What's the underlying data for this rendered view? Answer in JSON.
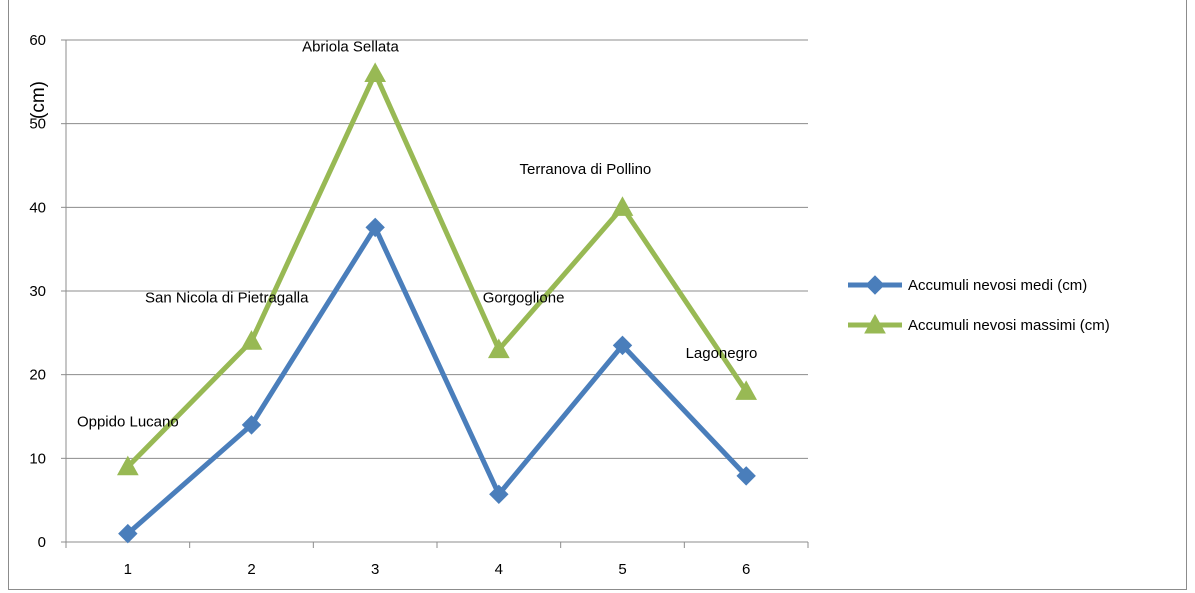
{
  "chart_data": {
    "type": "line",
    "title": "",
    "xlabel": "",
    "ylabel": "(cm)",
    "x": [
      1,
      2,
      3,
      4,
      5,
      6
    ],
    "x_tick_labels": [
      "1",
      "2",
      "3",
      "4",
      "5",
      "6"
    ],
    "ylim": [
      0,
      60
    ],
    "y_ticks": [
      0,
      10,
      20,
      30,
      40,
      50,
      60
    ],
    "y_tick_labels": [
      "0",
      "10",
      "20",
      "30",
      "40",
      "50",
      "60"
    ],
    "grid": "horizontal",
    "legend_position": "right",
    "series": [
      {
        "name": "Accumuli nevosi medi (cm)",
        "values": [
          1,
          14,
          37.6,
          5.7,
          23.5,
          7.9
        ],
        "color": "#4a7ebb",
        "marker": "diamond"
      },
      {
        "name": "Accumuli nevosi massimi (cm)",
        "values": [
          9,
          24,
          56,
          23,
          40,
          18
        ],
        "color": "#98b954",
        "marker": "triangle"
      }
    ],
    "annotations": [
      {
        "text": "Oppido Lucano",
        "x": 1,
        "y": 13.8
      },
      {
        "text": "San Nicola di Pietragalla",
        "x": 1.8,
        "y": 28.6
      },
      {
        "text": "Abriola Sellata",
        "x": 2.8,
        "y": 58.6
      },
      {
        "text": "Gorgoglione",
        "x": 4.2,
        "y": 28.6
      },
      {
        "text": "Terranova di Pollino",
        "x": 4.7,
        "y": 44
      },
      {
        "text": "Lagonegro",
        "x": 5.8,
        "y": 22
      }
    ]
  }
}
